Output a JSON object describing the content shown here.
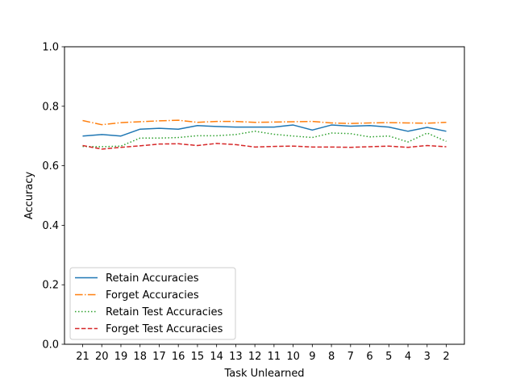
{
  "chart_data": {
    "type": "line",
    "xlabel": "Task Unlearned",
    "ylabel": "Accuracy",
    "categories": [
      "21",
      "20",
      "19",
      "18",
      "17",
      "16",
      "15",
      "14",
      "13",
      "12",
      "11",
      "10",
      "9",
      "8",
      "7",
      "6",
      "5",
      "4",
      "3",
      "2"
    ],
    "ylim": [
      0.0,
      1.0
    ],
    "yticks": [
      "0.0",
      "0.2",
      "0.4",
      "0.6",
      "0.8",
      "1.0"
    ],
    "grid": false,
    "legend_position": "lower-left",
    "series": [
      {
        "name": "Retain Accuracies",
        "color": "#1f77b4",
        "dash": "solid",
        "values": [
          0.7,
          0.705,
          0.7,
          0.723,
          0.726,
          0.723,
          0.735,
          0.732,
          0.73,
          0.73,
          0.73,
          0.737,
          0.72,
          0.737,
          0.733,
          0.735,
          0.73,
          0.716,
          0.729,
          0.716
        ]
      },
      {
        "name": "Forget Accuracies",
        "color": "#ff7f0e",
        "dash": "dashdot",
        "values": [
          0.752,
          0.738,
          0.745,
          0.748,
          0.751,
          0.753,
          0.746,
          0.749,
          0.749,
          0.746,
          0.747,
          0.748,
          0.749,
          0.744,
          0.742,
          0.744,
          0.745,
          0.744,
          0.743,
          0.746
        ]
      },
      {
        "name": "Retain Test Accuracies",
        "color": "#2ca02c",
        "dash": "dotted",
        "values": [
          0.665,
          0.664,
          0.666,
          0.693,
          0.693,
          0.695,
          0.701,
          0.701,
          0.705,
          0.716,
          0.706,
          0.7,
          0.695,
          0.71,
          0.708,
          0.697,
          0.7,
          0.68,
          0.71,
          0.682
        ]
      },
      {
        "name": "Forget Test Accuracies",
        "color": "#d62728",
        "dash": "dashed",
        "values": [
          0.668,
          0.656,
          0.662,
          0.667,
          0.673,
          0.674,
          0.668,
          0.675,
          0.671,
          0.663,
          0.665,
          0.666,
          0.663,
          0.663,
          0.662,
          0.664,
          0.666,
          0.662,
          0.668,
          0.664
        ]
      }
    ]
  }
}
